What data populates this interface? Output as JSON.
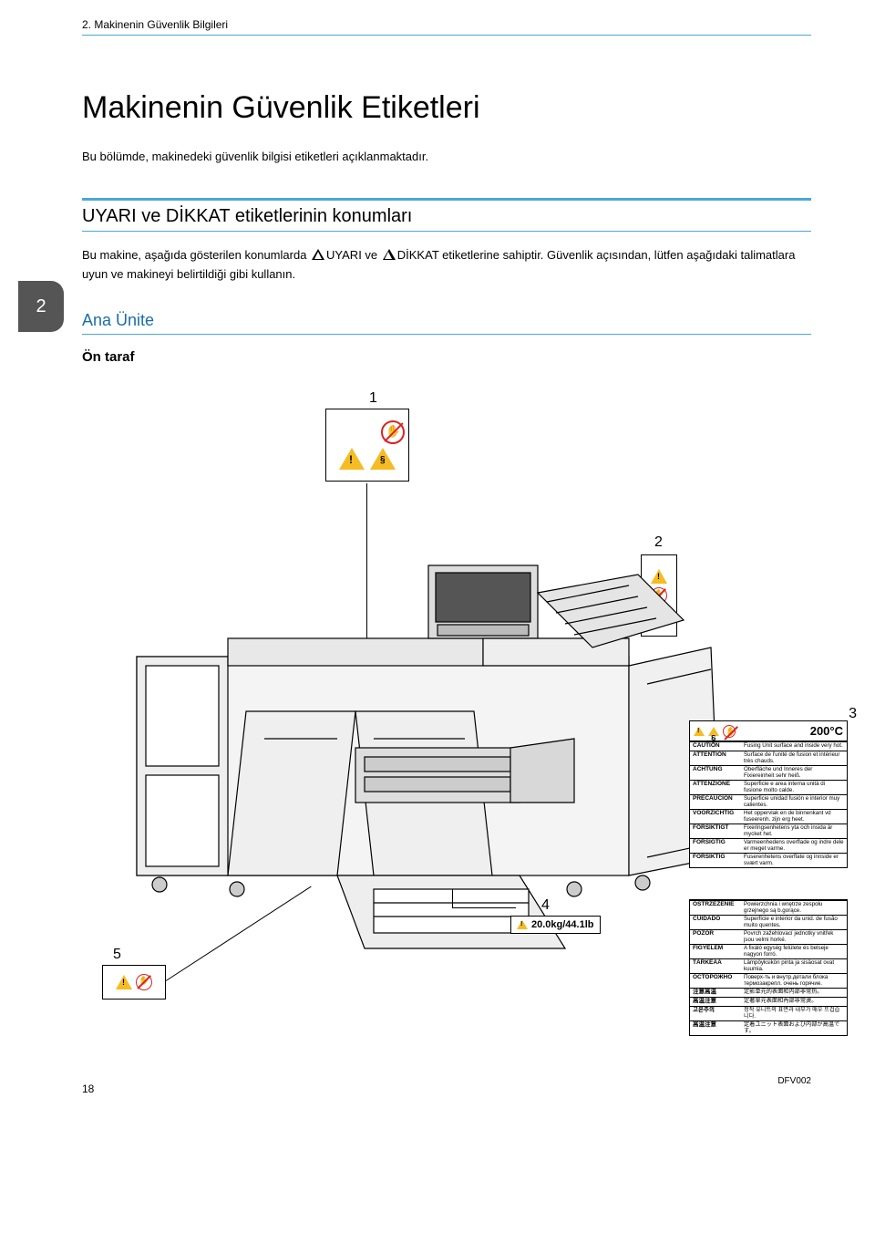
{
  "chapter_header": "2. Makinenin Güvenlik Bilgileri",
  "page_title": "Makinenin Güvenlik Etiketleri",
  "intro_text": "Bu bölümde, makinedeki güvenlik bilgisi etiketleri açıklanmaktadır.",
  "section_tab": "2",
  "section1": {
    "heading": "UYARI ve DİKKAT etiketlerinin konumları",
    "body_before_tri1": "Bu makine, aşağıda gösterilen konumlarda ",
    "body_mid1": "UYARI ve ",
    "body_mid2": "DİKKAT etiketlerine sahiptir. Güvenlik açısından, lütfen aşağıdaki talimatlara uyun ve makineyi belirtildiği gibi kullanın."
  },
  "sub_section_heading": "Ana Ünite",
  "sub_sub_heading": "Ön taraf",
  "callouts": {
    "n1": "1",
    "n2": "2",
    "n3": "3",
    "n4": "4",
    "n5": "5"
  },
  "label3": {
    "temp": "200°C",
    "rows": [
      [
        "CAUTION",
        "Fusing Unit surface and inside very hot."
      ],
      [
        "ATTENTION",
        "Surface de l'unité de fusion et intérieur très chauds."
      ],
      [
        "ACHTUNG",
        "Oberfläche und Inneres der Fixiereinheit sehr heiß."
      ],
      [
        "ATTENZIONE",
        "Superficie e area interna unità di fusione molto calde."
      ],
      [
        "PRECAUCIÓN",
        "Superficie unidad fusión e interior muy calientes."
      ],
      [
        "VOORZICHTIG",
        "Het oppervlak en de binnenkant vd fuseerenh. zijn erg heet."
      ],
      [
        "FÖRSIKTIGT",
        "Fixeringsenhetens yta och insida är mycket het."
      ],
      [
        "FORSIGTIG",
        "Varmeenhedens overflade og indre dele er meget varme."
      ],
      [
        "FORSIKTIG",
        "Fuserenhetens overflate og innside er svært varm."
      ]
    ]
  },
  "label3b": {
    "rows": [
      [
        "OSTRZEŻENIE",
        "Powierzchnia i wnętrze zespołu grzejnego są b.gorące."
      ],
      [
        "CUIDADO",
        "Superfície e interior da unid. de fusão muito quentes."
      ],
      [
        "POZOR",
        "Povrch zažehlovací jednotky vnitřek jsou velmi horké."
      ],
      [
        "FIGYELEM",
        "A fixáló egység felülete és belseje nagyon forró."
      ],
      [
        "TÄRKEÄÄ",
        "Lämpöyksikön pinta ja sisäosat ovat kuumia."
      ],
      [
        "ОСТОРОЖНО",
        "Поверх-ть и внутр.детали блока термозакрепл. очень горячие."
      ],
      [
        "注意高温",
        "定影单元的表面和内部非常热。"
      ],
      [
        "高温注意",
        "定著單元表面和內部非常燙。"
      ],
      [
        "고온주의",
        "정착 유니트의 표면과 내부가 매우 뜨겁습니다."
      ],
      [
        "高温注意",
        "定着ユニット表面および内部が高温です。"
      ]
    ]
  },
  "label4": {
    "weight": "20.0kg/44.1lb"
  },
  "doc_code": "DFV002",
  "page_number": "18",
  "colors": {
    "rule_blue": "#4aa8d6",
    "heading_blue": "#1b6ea5",
    "tab_gray": "#555555",
    "warn_yellow": "#f5bc23",
    "prohibit_red": "#d22"
  }
}
